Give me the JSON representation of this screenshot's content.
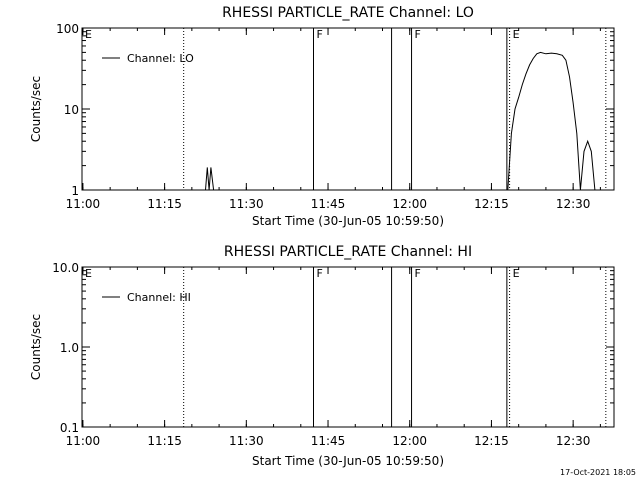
{
  "chart_data": [
    {
      "type": "line",
      "title": "RHESSI PARTICLE_RATE Channel: LO",
      "xlabel": "Start Time (30-Jun-05 10:59:50)",
      "ylabel": "Counts/sec",
      "yscale": "log",
      "ylim": [
        1,
        100
      ],
      "ytick_labels": [
        "1",
        "10",
        "100"
      ],
      "ytick_values": [
        1,
        10,
        100
      ],
      "xlim": [
        "10:59:50",
        "12:37:30"
      ],
      "xtick_labels": [
        "11:00",
        "11:15",
        "11:30",
        "11:45",
        "12:00",
        "12:15",
        "12:30"
      ],
      "xtick_values": [
        "11:00",
        "11:15",
        "11:30",
        "11:45",
        "12:00",
        "12:15",
        "12:30"
      ],
      "grid": false,
      "legend": "top-left",
      "series": [
        {
          "name": "Channel: LO",
          "points": [
            [
              "11:22:30",
              1
            ],
            [
              "11:22:50",
              1.9
            ],
            [
              "11:23:10",
              1
            ],
            [
              "11:23:30",
              1.9
            ],
            [
              "11:24:00",
              1
            ],
            [
              "12:18:00",
              1
            ],
            [
              "12:18:40",
              5
            ],
            [
              "12:19:20",
              10
            ],
            [
              "12:20:00",
              14
            ],
            [
              "12:20:40",
              20
            ],
            [
              "12:21:20",
              27
            ],
            [
              "12:22:00",
              35
            ],
            [
              "12:22:40",
              42
            ],
            [
              "12:23:20",
              48
            ],
            [
              "12:24:00",
              50
            ],
            [
              "12:25:00",
              48
            ],
            [
              "12:26:00",
              49
            ],
            [
              "12:27:00",
              48
            ],
            [
              "12:28:00",
              46
            ],
            [
              "12:28:40",
              40
            ],
            [
              "12:29:20",
              25
            ],
            [
              "12:30:00",
              12
            ],
            [
              "12:30:40",
              5
            ],
            [
              "12:31:20",
              1
            ],
            [
              "12:32:00",
              3
            ],
            [
              "12:32:40",
              4
            ],
            [
              "12:33:20",
              3
            ],
            [
              "12:34:00",
              1
            ]
          ]
        }
      ],
      "annotations": [
        {
          "label": "E",
          "time": "10:59:50",
          "style": "dotted"
        },
        {
          "label": "",
          "time": "11:18:30",
          "style": "dotted"
        },
        {
          "label": "F",
          "time": "11:42:20",
          "style": "solid"
        },
        {
          "label": "",
          "time": "11:56:40",
          "style": "solid"
        },
        {
          "label": "F",
          "time": "12:00:20",
          "style": "solid"
        },
        {
          "label": "",
          "time": "12:17:50",
          "style": "solid"
        },
        {
          "label": "E",
          "time": "12:18:20",
          "style": "dotted"
        },
        {
          "label": "",
          "time": "12:36:00",
          "style": "dotted"
        }
      ]
    },
    {
      "type": "line",
      "title": "RHESSI PARTICLE_RATE Channel: HI",
      "xlabel": "Start Time (30-Jun-05 10:59:50)",
      "ylabel": "Counts/sec",
      "yscale": "log",
      "ylim": [
        0.1,
        10
      ],
      "ytick_labels": [
        "0.1",
        "1.0",
        "10.0"
      ],
      "ytick_values": [
        0.1,
        1,
        10
      ],
      "xlim": [
        "10:59:50",
        "12:37:30"
      ],
      "xtick_labels": [
        "11:00",
        "11:15",
        "11:30",
        "11:45",
        "12:00",
        "12:15",
        "12:30"
      ],
      "xtick_values": [
        "11:00",
        "11:15",
        "11:30",
        "11:45",
        "12:00",
        "12:15",
        "12:30"
      ],
      "grid": false,
      "legend": "top-left",
      "series": [
        {
          "name": "Channel: HI",
          "points": []
        }
      ],
      "annotations": [
        {
          "label": "E",
          "time": "10:59:50",
          "style": "dotted"
        },
        {
          "label": "",
          "time": "11:18:30",
          "style": "dotted"
        },
        {
          "label": "F",
          "time": "11:42:20",
          "style": "solid"
        },
        {
          "label": "",
          "time": "11:56:40",
          "style": "solid"
        },
        {
          "label": "F",
          "time": "12:00:20",
          "style": "solid"
        },
        {
          "label": "",
          "time": "12:17:50",
          "style": "solid"
        },
        {
          "label": "E",
          "time": "12:18:20",
          "style": "dotted"
        },
        {
          "label": "",
          "time": "12:36:00",
          "style": "dotted"
        }
      ]
    }
  ],
  "footer": {
    "timestamp": "17-Oct-2021 18:05"
  }
}
